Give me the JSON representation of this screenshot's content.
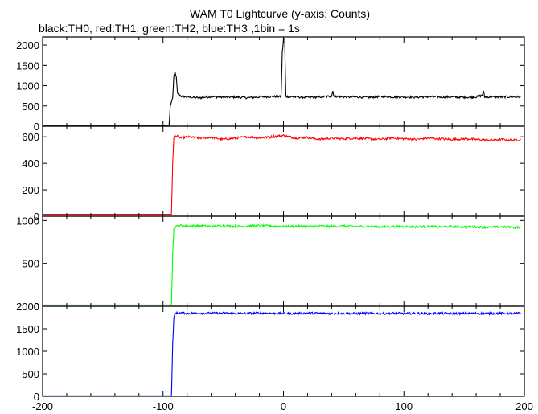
{
  "chart_data": {
    "type": "line",
    "title": "WAM T0 Lightcurve (y-axis: Counts)",
    "subtitle": "black:TH0, red:TH1, green:TH2, blue:TH3 ,1bin = 1s",
    "xlabel": "",
    "ylabel": "",
    "xlim": [
      -200,
      200
    ],
    "x_ticks": [
      -200,
      -100,
      0,
      100,
      200
    ],
    "grid": false,
    "panels": [
      {
        "name": "TH0",
        "color": "#000000",
        "ylim": [
          0,
          2200
        ],
        "y_ticks": [
          0,
          500,
          1000,
          1500,
          2000
        ],
        "points": [
          [
            -200,
            5
          ],
          [
            -150,
            5
          ],
          [
            -95,
            5
          ],
          [
            -94,
            500
          ],
          [
            -92,
            700
          ],
          [
            -91,
            1220
          ],
          [
            -90,
            1340
          ],
          [
            -89,
            1200
          ],
          [
            -88,
            800
          ],
          [
            -85,
            740
          ],
          [
            -80,
            720
          ],
          [
            -70,
            700
          ],
          [
            -60,
            730
          ],
          [
            -50,
            710
          ],
          [
            -40,
            720
          ],
          [
            -30,
            700
          ],
          [
            -20,
            720
          ],
          [
            -10,
            730
          ],
          [
            -2,
            730
          ],
          [
            -1,
            1800
          ],
          [
            0,
            2150
          ],
          [
            1,
            2150
          ],
          [
            2,
            730
          ],
          [
            10,
            720
          ],
          [
            20,
            710
          ],
          [
            30,
            720
          ],
          [
            40,
            740
          ],
          [
            41,
            870
          ],
          [
            42,
            740
          ],
          [
            50,
            720
          ],
          [
            60,
            720
          ],
          [
            70,
            710
          ],
          [
            80,
            730
          ],
          [
            90,
            720
          ],
          [
            100,
            720
          ],
          [
            110,
            715
          ],
          [
            120,
            725
          ],
          [
            130,
            720
          ],
          [
            140,
            720
          ],
          [
            150,
            710
          ],
          [
            160,
            720
          ],
          [
            165,
            760
          ],
          [
            166,
            860
          ],
          [
            167,
            720
          ],
          [
            180,
            720
          ],
          [
            190,
            725
          ],
          [
            197,
            720
          ]
        ]
      },
      {
        "name": "TH1",
        "color": "#ff0000",
        "ylim": [
          0,
          680
        ],
        "y_ticks": [
          0,
          200,
          400,
          600
        ],
        "points": [
          [
            -200,
            15
          ],
          [
            -150,
            15
          ],
          [
            -93,
            15
          ],
          [
            -92,
            400
          ],
          [
            -91,
            600
          ],
          [
            -90,
            610
          ],
          [
            -85,
            590
          ],
          [
            -80,
            600
          ],
          [
            -70,
            590
          ],
          [
            -60,
            595
          ],
          [
            -50,
            580
          ],
          [
            -40,
            590
          ],
          [
            -30,
            600
          ],
          [
            -20,
            590
          ],
          [
            -10,
            600
          ],
          [
            0,
            610
          ],
          [
            10,
            590
          ],
          [
            20,
            595
          ],
          [
            30,
            580
          ],
          [
            40,
            590
          ],
          [
            50,
            585
          ],
          [
            60,
            590
          ],
          [
            70,
            585
          ],
          [
            80,
            580
          ],
          [
            90,
            590
          ],
          [
            100,
            585
          ],
          [
            110,
            580
          ],
          [
            120,
            590
          ],
          [
            130,
            585
          ],
          [
            140,
            580
          ],
          [
            150,
            585
          ],
          [
            160,
            580
          ],
          [
            170,
            575
          ],
          [
            180,
            580
          ],
          [
            190,
            575
          ],
          [
            197,
            580
          ]
        ]
      },
      {
        "name": "TH2",
        "color": "#00ff00",
        "ylim": [
          0,
          1050
        ],
        "y_ticks": [
          0,
          500,
          1000
        ],
        "points": [
          [
            -200,
            15
          ],
          [
            -150,
            15
          ],
          [
            -93,
            15
          ],
          [
            -92,
            600
          ],
          [
            -91,
            900
          ],
          [
            -90,
            930
          ],
          [
            -85,
            940
          ],
          [
            -80,
            935
          ],
          [
            -70,
            940
          ],
          [
            -60,
            930
          ],
          [
            -50,
            940
          ],
          [
            -40,
            930
          ],
          [
            -30,
            935
          ],
          [
            -20,
            940
          ],
          [
            -10,
            935
          ],
          [
            0,
            930
          ],
          [
            10,
            935
          ],
          [
            20,
            930
          ],
          [
            30,
            935
          ],
          [
            40,
            930
          ],
          [
            50,
            935
          ],
          [
            60,
            930
          ],
          [
            70,
            930
          ],
          [
            80,
            925
          ],
          [
            90,
            930
          ],
          [
            100,
            930
          ],
          [
            110,
            925
          ],
          [
            120,
            930
          ],
          [
            130,
            925
          ],
          [
            140,
            930
          ],
          [
            150,
            925
          ],
          [
            160,
            925
          ],
          [
            170,
            920
          ],
          [
            180,
            925
          ],
          [
            190,
            920
          ],
          [
            197,
            920
          ]
        ]
      },
      {
        "name": "TH3",
        "color": "#0000ff",
        "ylim": [
          0,
          2000
        ],
        "y_ticks": [
          0,
          500,
          1000,
          1500,
          2000
        ],
        "points": [
          [
            -200,
            10
          ],
          [
            -150,
            10
          ],
          [
            -93,
            10
          ],
          [
            -92,
            1150
          ],
          [
            -91,
            1750
          ],
          [
            -90,
            1850
          ],
          [
            -85,
            1850
          ],
          [
            -80,
            1845
          ],
          [
            -70,
            1850
          ],
          [
            -60,
            1845
          ],
          [
            -50,
            1850
          ],
          [
            -40,
            1840
          ],
          [
            -30,
            1845
          ],
          [
            -20,
            1850
          ],
          [
            -10,
            1845
          ],
          [
            0,
            1840
          ],
          [
            10,
            1845
          ],
          [
            20,
            1850
          ],
          [
            30,
            1845
          ],
          [
            40,
            1840
          ],
          [
            50,
            1845
          ],
          [
            60,
            1840
          ],
          [
            70,
            1845
          ],
          [
            80,
            1840
          ],
          [
            90,
            1845
          ],
          [
            100,
            1840
          ],
          [
            110,
            1845
          ],
          [
            120,
            1840
          ],
          [
            130,
            1845
          ],
          [
            140,
            1840
          ],
          [
            150,
            1840
          ],
          [
            160,
            1845
          ],
          [
            170,
            1840
          ],
          [
            180,
            1845
          ],
          [
            190,
            1840
          ],
          [
            197,
            1845
          ]
        ]
      }
    ]
  }
}
